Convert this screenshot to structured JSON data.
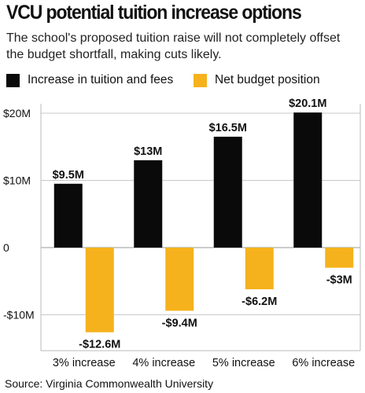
{
  "title": "VCU potential tuition increase options",
  "subtitle": "The school's proposed tuition raise will not completely offset the budget shortfall, making cuts likely.",
  "source": "Source: Virginia Commonwealth University",
  "colors": {
    "tuition": "#0a0a0a",
    "budget": "#f5b21c",
    "grid": "#c8c8c8"
  },
  "chart_data": {
    "type": "bar",
    "categories": [
      "3% increase",
      "4% increase",
      "5% increase",
      "6% increase"
    ],
    "series": [
      {
        "name": "Increase in tuition and fees",
        "values": [
          9.5,
          13,
          16.5,
          20.1
        ],
        "labels": [
          "$9.5M",
          "$13M",
          "$16.5M",
          "$20.1M"
        ],
        "color": "#0a0a0a"
      },
      {
        "name": "Net budget position",
        "values": [
          -12.6,
          -9.4,
          -6.2,
          -3
        ],
        "labels": [
          "-$12.6M",
          "-$9.4M",
          "-$6.2M",
          "-$3M"
        ],
        "color": "#f5b21c"
      }
    ],
    "yticks": [
      20,
      10,
      0,
      -10
    ],
    "ytick_labels": [
      "$20M",
      "$10M",
      "0",
      "-$10M"
    ],
    "ylim": [
      -13,
      20.5
    ],
    "grid": true,
    "legend_position": "top-left"
  }
}
